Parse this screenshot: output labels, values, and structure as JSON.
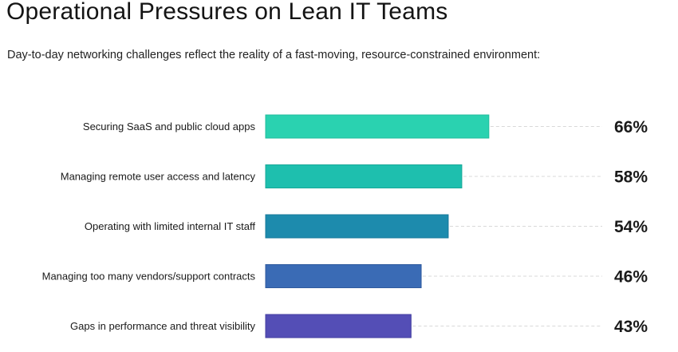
{
  "header": {
    "title": "Operational Pressures on Lean IT Teams",
    "subtitle": "Day-to-day networking challenges reflect the reality of a fast-moving, resource-constrained environment:"
  },
  "chart_data": {
    "type": "bar",
    "orientation": "horizontal",
    "title": "Operational Pressures on Lean IT Teams",
    "subtitle": "Day-to-day networking challenges reflect the reality of a fast-moving, resource-constrained environment:",
    "xlabel": "",
    "ylabel": "",
    "xlim": [
      0,
      100
    ],
    "grid": false,
    "unit": "%",
    "categories": [
      "Securing SaaS and public cloud apps",
      "Managing remote user access and latency",
      "Operating with limited internal IT staff",
      "Managing too many vendors/support contracts",
      "Gaps in performance and threat visibility"
    ],
    "values": [
      66,
      58,
      54,
      46,
      43
    ],
    "value_labels": [
      "66%",
      "58%",
      "54%",
      "46%",
      "43%"
    ],
    "colors": [
      "#2AD2B0",
      "#1EBFAE",
      "#1D8BAD",
      "#3A6BB5",
      "#544EB6"
    ],
    "border_colors": [
      "#21BC9C",
      "#18A898",
      "#17789A",
      "#2F5A9E",
      "#433EA0"
    ],
    "leader_line_color": "#D9D9D9"
  }
}
